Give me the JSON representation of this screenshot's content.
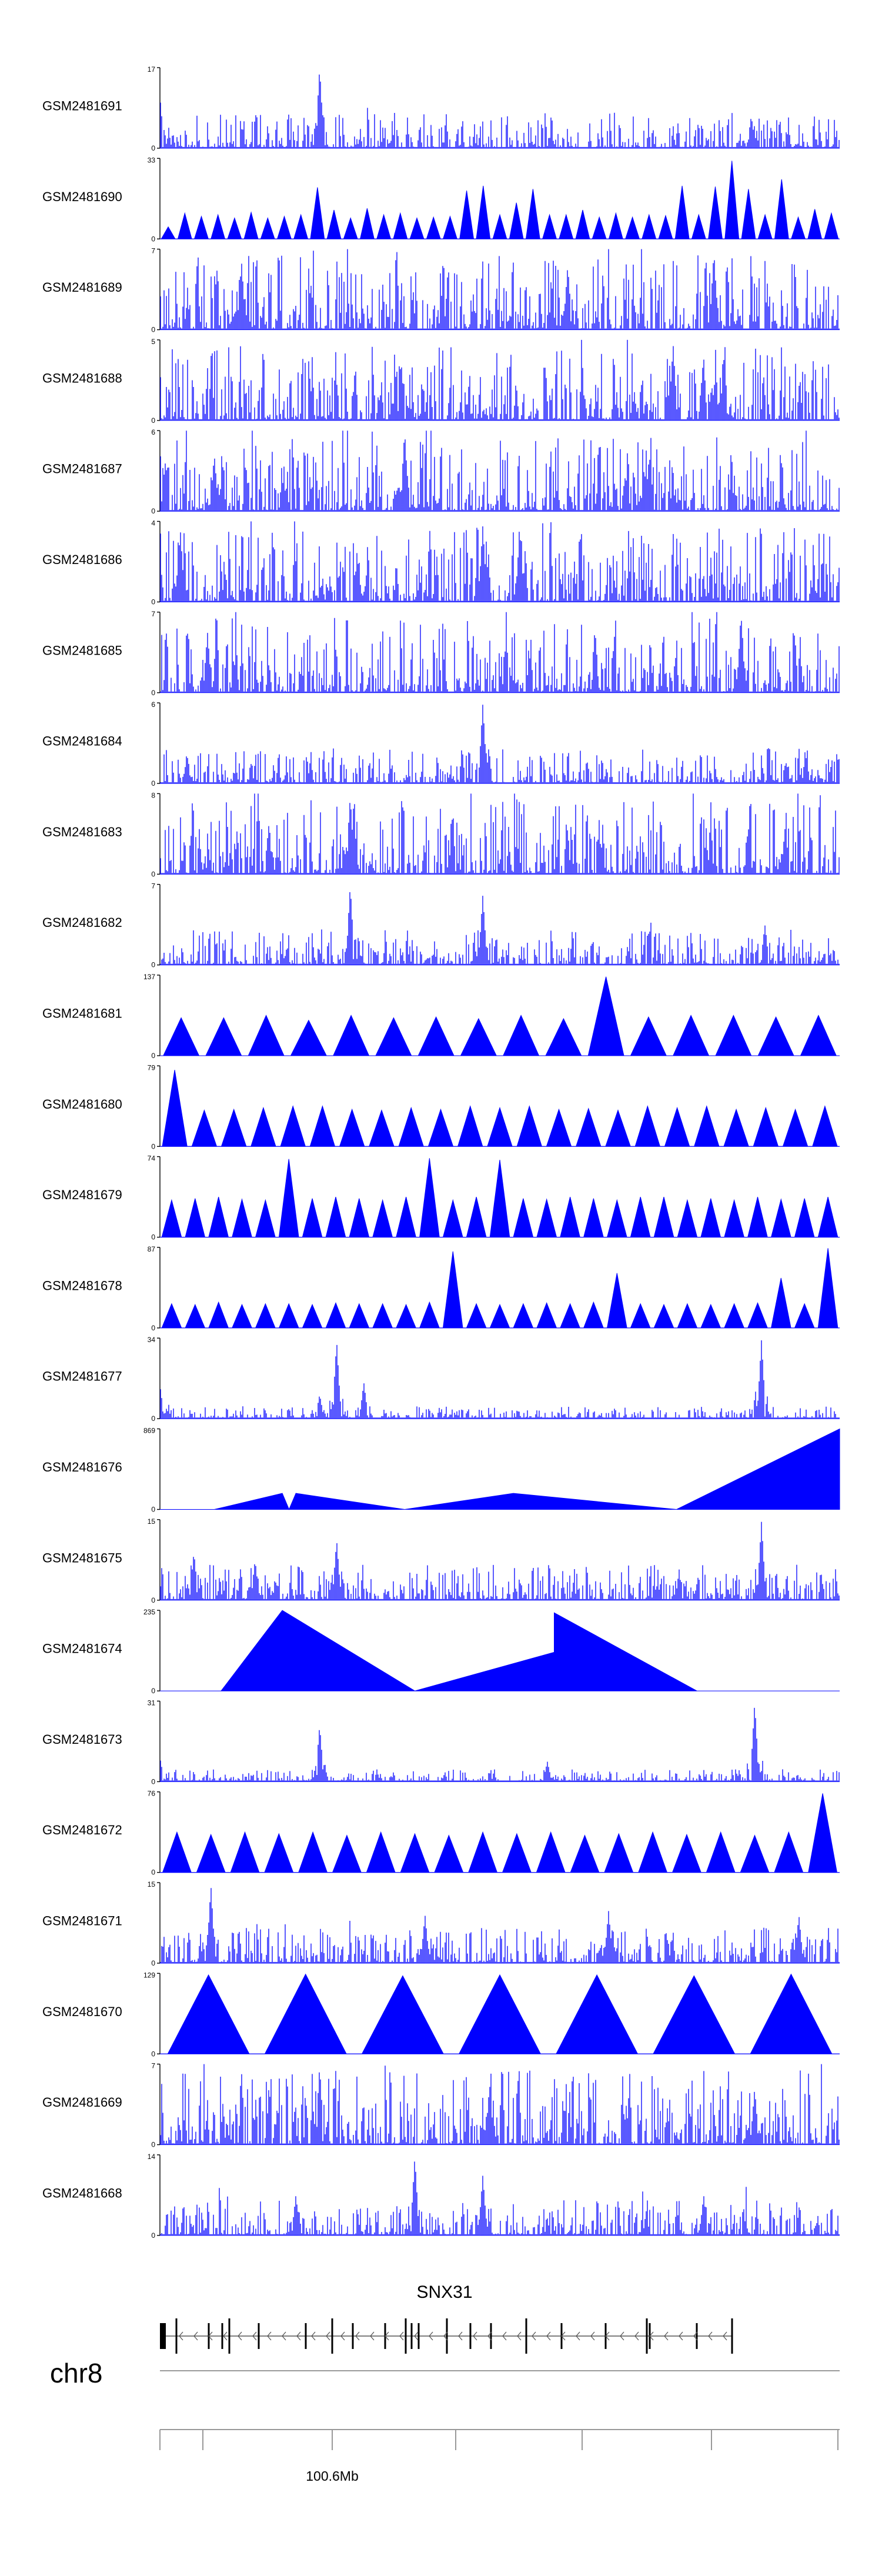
{
  "colors": {
    "signal": "#0000ff",
    "axis": "#000000",
    "text": "#000000",
    "gene": "#555555"
  },
  "chart_data": {
    "type": "area",
    "genome": {
      "chromosome": "chr8",
      "tick_label": "100.6Mb"
    },
    "gene": {
      "name": "SNX31",
      "strand": "-"
    },
    "tracks": [
      {
        "name": "GSM2481691",
        "ymax": 17,
        "profile": "spiky",
        "peaks": [
          [
            0.235,
            1.0
          ],
          [
            0.0,
            0.65
          ],
          [
            0.87,
            0.4
          ]
        ]
      },
      {
        "name": "GSM2481690",
        "ymax": 33,
        "profile": "tri",
        "heights": [
          0.15,
          0.32,
          0.28,
          0.3,
          0.26,
          0.33,
          0.26,
          0.28,
          0.3,
          0.64,
          0.36,
          0.26,
          0.38,
          0.3,
          0.32,
          0.26,
          0.27,
          0.28,
          0.6,
          0.66,
          0.3,
          0.45,
          0.62,
          0.3,
          0.3,
          0.36,
          0.27,
          0.32,
          0.27,
          0.3,
          0.29,
          0.66,
          0.3,
          0.65,
          0.97,
          0.62,
          0.3,
          0.74,
          0.27,
          0.37,
          0.32
        ]
      },
      {
        "name": "GSM2481689",
        "ymax": 7,
        "profile": "dense",
        "peaks": [
          [
            0.815,
            0.97
          ],
          [
            0.12,
            0.85
          ],
          [
            0.6,
            0.8
          ]
        ]
      },
      {
        "name": "GSM2481688",
        "ymax": 5,
        "profile": "dense",
        "peaks": [
          [
            0.755,
            0.95
          ],
          [
            0.83,
            0.8
          ],
          [
            0.355,
            0.7
          ]
        ]
      },
      {
        "name": "GSM2481687",
        "ymax": 6,
        "profile": "dense",
        "peaks": [
          [
            0.36,
            1.0
          ],
          [
            0.08,
            0.7
          ],
          [
            0.72,
            0.7
          ]
        ]
      },
      {
        "name": "GSM2481686",
        "ymax": 4,
        "profile": "dense",
        "peaks": [
          [
            0.475,
            0.95
          ],
          [
            0.03,
            0.9
          ],
          [
            0.53,
            0.8
          ]
        ]
      },
      {
        "name": "GSM2481685",
        "ymax": 7,
        "profile": "dense",
        "peaks": [
          [
            0.855,
            0.97
          ],
          [
            0.07,
            0.75
          ],
          [
            0.64,
            0.8
          ]
        ]
      },
      {
        "name": "GSM2481684",
        "ymax": 6,
        "profile": "spiky",
        "peaks": [
          [
            0.475,
            0.99
          ],
          [
            0.04,
            0.35
          ],
          [
            0.95,
            0.35
          ]
        ]
      },
      {
        "name": "GSM2481683",
        "ymax": 8,
        "profile": "dense",
        "peaks": [
          [
            0.28,
            0.97
          ],
          [
            0.16,
            0.6
          ],
          [
            0.92,
            0.6
          ]
        ]
      },
      {
        "name": "GSM2481682",
        "ymax": 7,
        "profile": "spiky",
        "peaks": [
          [
            0.28,
            0.99
          ],
          [
            0.475,
            0.87
          ],
          [
            0.89,
            0.5
          ]
        ]
      },
      {
        "name": "GSM2481681",
        "ymax": 137,
        "profile": "tri",
        "heights": [
          0.47,
          0.47,
          0.5,
          0.44,
          0.5,
          0.47,
          0.48,
          0.46,
          0.5,
          0.46,
          0.98,
          0.48,
          0.5,
          0.5,
          0.48,
          0.5
        ]
      },
      {
        "name": "GSM2481680",
        "ymax": 79,
        "profile": "tri",
        "heights": [
          0.95,
          0.45,
          0.46,
          0.48,
          0.5,
          0.5,
          0.46,
          0.45,
          0.48,
          0.46,
          0.5,
          0.48,
          0.5,
          0.46,
          0.47,
          0.45,
          0.5,
          0.48,
          0.5,
          0.46,
          0.48,
          0.46,
          0.5
        ]
      },
      {
        "name": "GSM2481679",
        "ymax": 74,
        "profile": "tri",
        "heights": [
          0.46,
          0.48,
          0.5,
          0.47,
          0.46,
          0.97,
          0.48,
          0.5,
          0.48,
          0.46,
          0.5,
          0.98,
          0.46,
          0.5,
          0.96,
          0.48,
          0.47,
          0.5,
          0.48,
          0.46,
          0.5,
          0.5,
          0.46,
          0.48,
          0.46,
          0.5,
          0.47,
          0.48,
          0.5
        ]
      },
      {
        "name": "GSM2481678",
        "ymax": 87,
        "profile": "tri",
        "heights": [
          0.3,
          0.29,
          0.32,
          0.29,
          0.3,
          0.3,
          0.29,
          0.31,
          0.3,
          0.3,
          0.29,
          0.32,
          0.95,
          0.3,
          0.29,
          0.3,
          0.31,
          0.3,
          0.32,
          0.68,
          0.3,
          0.29,
          0.3,
          0.29,
          0.3,
          0.31,
          0.62,
          0.3,
          0.99
        ]
      },
      {
        "name": "GSM2481677",
        "ymax": 34,
        "profile": "sparse",
        "peaks": [
          [
            0.26,
            0.97
          ],
          [
            0.885,
            0.98
          ],
          [
            0.235,
            0.3
          ],
          [
            0.3,
            0.45
          ],
          [
            0.0,
            0.42
          ]
        ]
      },
      {
        "name": "GSM2481676",
        "ymax": 869,
        "profile": "poly",
        "points": [
          [
            0.08,
            0.0
          ],
          [
            0.18,
            0.2
          ],
          [
            0.19,
            0.0
          ],
          [
            0.2,
            0.2
          ],
          [
            0.36,
            0.0
          ],
          [
            0.52,
            0.2
          ],
          [
            0.76,
            0.0
          ],
          [
            1.0,
            1.0
          ]
        ]
      },
      {
        "name": "GSM2481675",
        "ymax": 15,
        "profile": "spiky",
        "peaks": [
          [
            0.885,
            0.98
          ],
          [
            0.26,
            0.75
          ],
          [
            0.05,
            0.6
          ],
          [
            0.14,
            0.5
          ]
        ]
      },
      {
        "name": "GSM2481674",
        "ymax": 235,
        "profile": "poly",
        "points": [
          [
            0.09,
            0.0
          ],
          [
            0.18,
            1.0
          ],
          [
            0.375,
            0.0
          ],
          [
            0.58,
            0.48
          ],
          [
            0.58,
            0.97
          ],
          [
            0.79,
            0.0
          ]
        ]
      },
      {
        "name": "GSM2481673",
        "ymax": 31,
        "profile": "sparse",
        "peaks": [
          [
            0.875,
            0.98
          ],
          [
            0.235,
            0.7
          ],
          [
            0.0,
            0.3
          ],
          [
            0.57,
            0.25
          ]
        ]
      },
      {
        "name": "GSM2481672",
        "ymax": 76,
        "profile": "tri",
        "heights": [
          0.5,
          0.47,
          0.5,
          0.48,
          0.5,
          0.46,
          0.5,
          0.48,
          0.46,
          0.5,
          0.48,
          0.5,
          0.46,
          0.48,
          0.5,
          0.47,
          0.5,
          0.46,
          0.5,
          0.98
        ]
      },
      {
        "name": "GSM2481671",
        "ymax": 15,
        "profile": "spiky",
        "peaks": [
          [
            0.075,
            0.97
          ],
          [
            0.39,
            0.6
          ],
          [
            0.66,
            0.65
          ],
          [
            0.94,
            0.6
          ]
        ]
      },
      {
        "name": "GSM2481670",
        "ymax": 129,
        "profile": "tri",
        "heights": [
          0.98,
          0.99,
          0.97,
          0.98,
          0.98,
          0.97,
          0.99
        ]
      },
      {
        "name": "GSM2481669",
        "ymax": 7,
        "profile": "dense",
        "peaks": [
          [
            0.235,
            0.98
          ],
          [
            0.485,
            0.75
          ],
          [
            0.875,
            0.7
          ]
        ]
      },
      {
        "name": "GSM2481668",
        "ymax": 14,
        "profile": "spiky",
        "peaks": [
          [
            0.375,
            0.98
          ],
          [
            0.475,
            0.75
          ],
          [
            0.2,
            0.5
          ],
          [
            0.8,
            0.5
          ]
        ]
      }
    ]
  }
}
